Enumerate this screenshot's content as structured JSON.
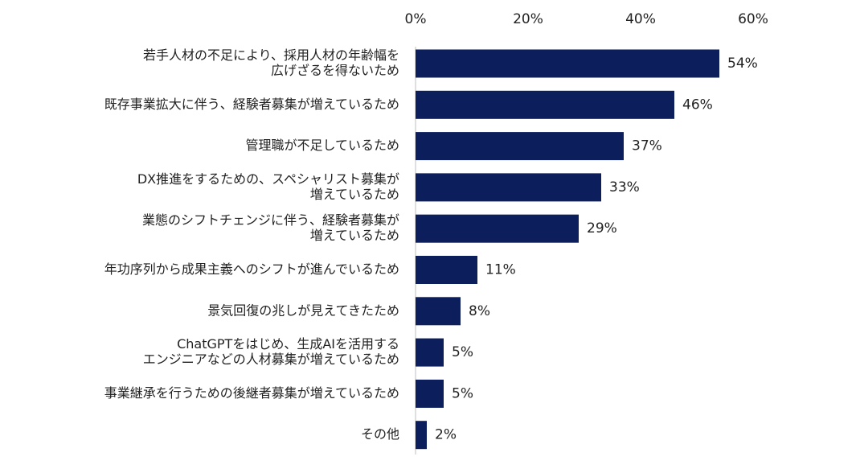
{
  "chart_data": {
    "type": "bar",
    "orientation": "horizontal",
    "title": "",
    "xlabel": "",
    "ylabel": "",
    "xlim": [
      0,
      60
    ],
    "x_ticks": [
      "0%",
      "20%",
      "40%",
      "60%"
    ],
    "x_tick_values": [
      0,
      20,
      40,
      60
    ],
    "x_axis_position": "top",
    "grid": false,
    "legend": "none",
    "bar_color": "#0c1f5c",
    "categories": [
      [
        "若手人材の不足により、採用人材の年齢幅を",
        "広げざるを得ないため"
      ],
      [
        "既存事業拡大に伴う、経験者募集が増えているため"
      ],
      [
        "管理職が不足しているため"
      ],
      [
        "DX推進をするための、スペシャリスト募集が",
        "増えているため"
      ],
      [
        "業態のシフトチェンジに伴う、経験者募集が",
        "増えているため"
      ],
      [
        "年功序列から成果主義へのシフトが進んでいるため"
      ],
      [
        "景気回復の兆しが見えてきたため"
      ],
      [
        "ChatGPTをはじめ、生成AIを活用する",
        "エンジニアなどの人材募集が増えているため"
      ],
      [
        "事業継承を行うための後継者募集が増えているため"
      ],
      [
        "その他"
      ]
    ],
    "values": [
      54,
      46,
      37,
      33,
      29,
      11,
      8,
      5,
      5,
      2
    ],
    "value_labels": [
      "54%",
      "46%",
      "37%",
      "33%",
      "29%",
      "11%",
      "8%",
      "5%",
      "5%",
      "2%"
    ]
  }
}
